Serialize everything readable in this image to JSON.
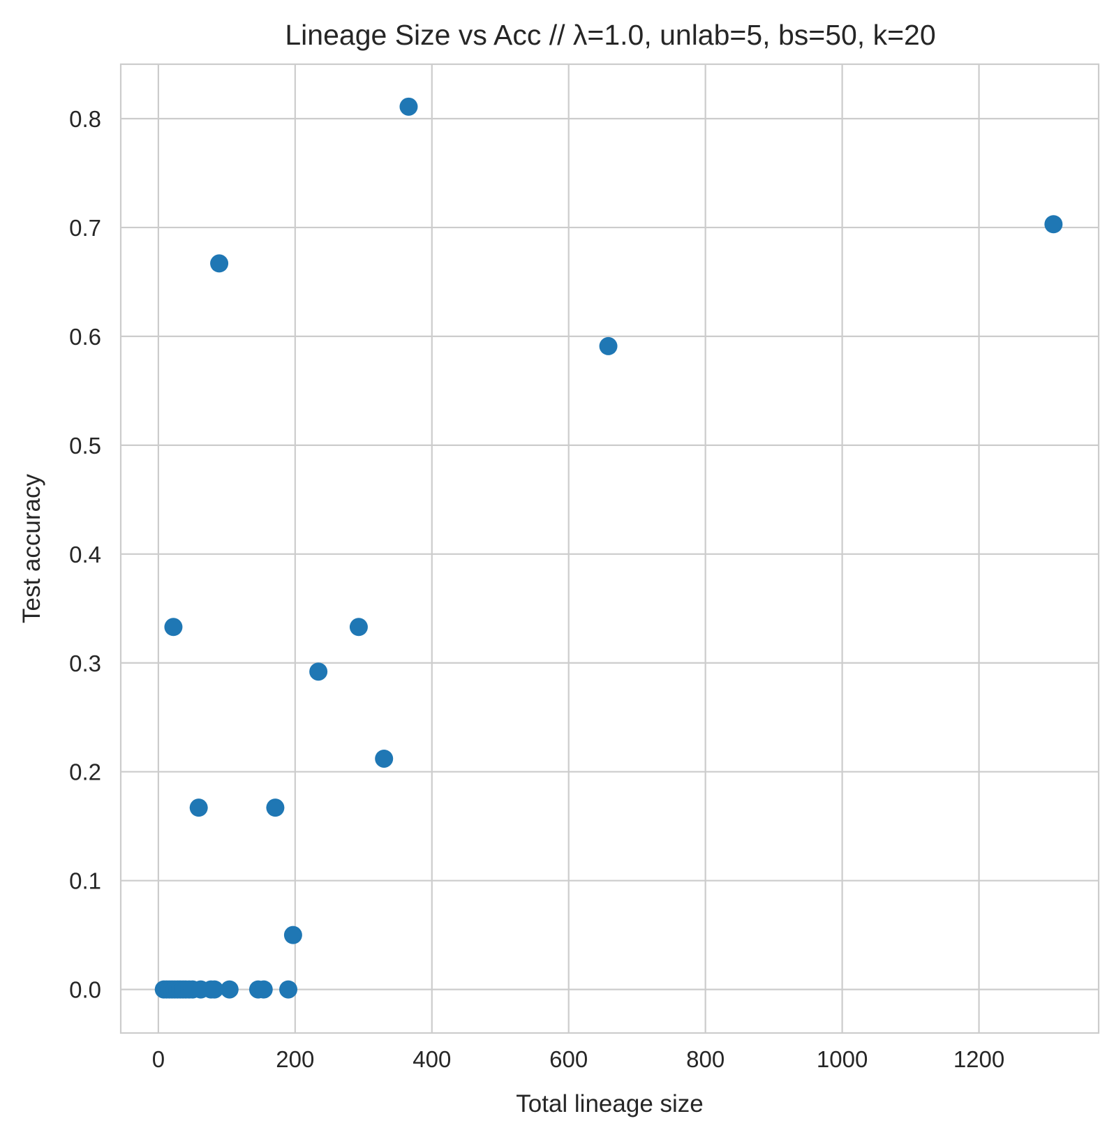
{
  "chart_data": {
    "type": "scatter",
    "title": "Lineage Size vs Acc // λ=1.0, unlab=5, bs=50, k=20",
    "xlabel": "Total lineage size",
    "ylabel": "Test accuracy",
    "xlim": [
      -55,
      1375
    ],
    "ylim": [
      -0.04,
      0.85
    ],
    "xticks": [
      0,
      200,
      400,
      600,
      800,
      1000,
      1200
    ],
    "yticks": [
      0.0,
      0.1,
      0.2,
      0.3,
      0.4,
      0.5,
      0.6,
      0.7,
      0.8
    ],
    "grid": true,
    "marker_color": "#1f77b4",
    "points": [
      {
        "x": 366,
        "y": 0.811
      },
      {
        "x": 1309,
        "y": 0.703
      },
      {
        "x": 89,
        "y": 0.667
      },
      {
        "x": 658,
        "y": 0.591
      },
      {
        "x": 22,
        "y": 0.333
      },
      {
        "x": 293,
        "y": 0.333
      },
      {
        "x": 234,
        "y": 0.292
      },
      {
        "x": 330,
        "y": 0.212
      },
      {
        "x": 59,
        "y": 0.167
      },
      {
        "x": 171,
        "y": 0.167
      },
      {
        "x": 197,
        "y": 0.05
      },
      {
        "x": 8,
        "y": 0.0
      },
      {
        "x": 12,
        "y": 0.0
      },
      {
        "x": 16,
        "y": 0.0
      },
      {
        "x": 20,
        "y": 0.0
      },
      {
        "x": 24,
        "y": 0.0
      },
      {
        "x": 28,
        "y": 0.0
      },
      {
        "x": 32,
        "y": 0.0
      },
      {
        "x": 36,
        "y": 0.0
      },
      {
        "x": 40,
        "y": 0.0
      },
      {
        "x": 45,
        "y": 0.0
      },
      {
        "x": 50,
        "y": 0.0
      },
      {
        "x": 62,
        "y": 0.0
      },
      {
        "x": 77,
        "y": 0.0
      },
      {
        "x": 82,
        "y": 0.0
      },
      {
        "x": 104,
        "y": 0.0
      },
      {
        "x": 146,
        "y": 0.0
      },
      {
        "x": 154,
        "y": 0.0
      },
      {
        "x": 190,
        "y": 0.0
      }
    ]
  }
}
